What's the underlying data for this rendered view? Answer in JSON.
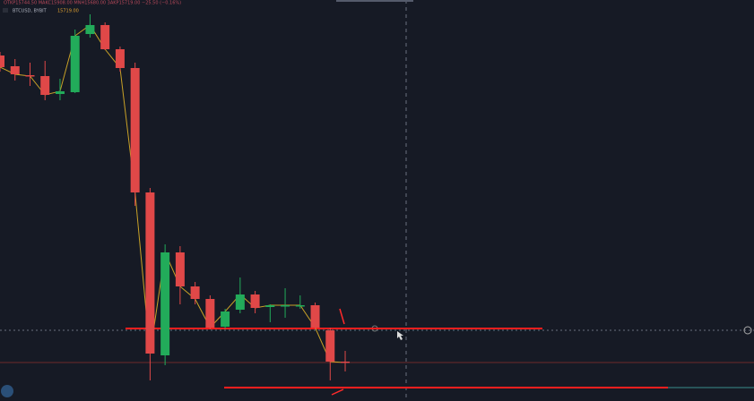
{
  "chart_data": {
    "type": "candlestick",
    "title": "BTCUSD, BYBIT",
    "subtitle": "OTKP15744.50 MAKC15908.00 MNH15680.00 3AKP15719.00 −25.50 (−0.16%)",
    "last_price_label": "15719.00",
    "ylim": [
      15676,
      16124
    ],
    "up_color": "#22ab5a",
    "down_color": "#e04848",
    "close_line_color": "#c9a227",
    "open": [
      16062,
      16050,
      16040,
      16039,
      16019,
      16021,
      16086,
      16096,
      16069,
      16048,
      15909,
      15727,
      15842,
      15804,
      15790,
      15759,
      15778,
      15795,
      15781,
      15783,
      15783,
      15783,
      15755,
      15720
    ],
    "high": [
      16066,
      16058,
      16054,
      16056,
      16036,
      16091,
      16108,
      16099,
      16072,
      16054,
      15914,
      15851,
      15849,
      15809,
      15794,
      15779,
      15814,
      15799,
      15784,
      15802,
      15794,
      15786,
      15758,
      15732
    ],
    "low": [
      16044,
      16034,
      16028,
      16012,
      16012,
      16020,
      16082,
      16068,
      16044,
      15894,
      15699,
      15716,
      15784,
      15784,
      15756,
      15757,
      15774,
      15774,
      15764,
      15769,
      15779,
      15756,
      15699,
      15709
    ],
    "close": [
      16049,
      16041,
      16039,
      16018,
      16022,
      16084,
      16096,
      16069,
      16048,
      15909,
      15729,
      15842,
      15804,
      15790,
      15758,
      15776,
      15795,
      15780,
      15783,
      15783,
      15783,
      15758,
      15720,
      15719
    ],
    "hlines": [
      15757,
      15691
    ],
    "hline_color": "#ff1e1e"
  }
}
